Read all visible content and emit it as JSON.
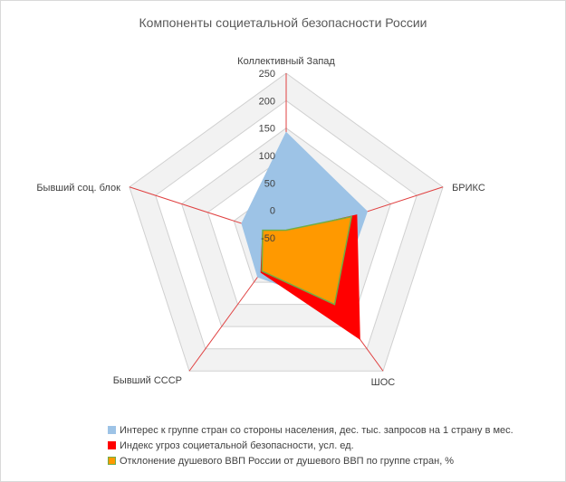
{
  "chart_data": {
    "type": "radar",
    "title": "Компоненты социетальной безопасности России",
    "categories": [
      "Коллективный  Запад",
      "БРИКС",
      "ШОС",
      "Бывший  СССР",
      "Бывший  соц. блок"
    ],
    "rlim": [
      -50,
      250
    ],
    "ticks": [
      "250",
      "200",
      "150",
      "100",
      "50",
      "0",
      "-50"
    ],
    "tick_values": [
      250,
      200,
      150,
      100,
      50,
      0,
      -50
    ],
    "grid": true,
    "legend_position": "bottom",
    "series": [
      {
        "name": "Интерес к группе стран со стороны населения, дес. тыс. запросов на 1 страну в мес.",
        "values": [
          142,
          105,
          100,
          38,
          35
        ],
        "fill": "#9dc3e6",
        "stroke": "#9dc3e6"
      },
      {
        "name": "Индекс угроз социетальной безопасности, усл. ед.",
        "values": [
          -38,
          85,
          178,
          28,
          -5
        ],
        "fill": "#ff0000",
        "stroke": "#ff0000"
      },
      {
        "name": "Отклонение душевого ВВП России от душевого ВВП по группе стран, %",
        "values": [
          -36,
          75,
          100,
          25,
          -5
        ],
        "fill": "#ff9900",
        "stroke": "#70ad47"
      }
    ]
  },
  "colors": {
    "axis": "#e04040",
    "grid": "#d0d0d0",
    "band_dark": "#f2f2f2",
    "band_light": "#ffffff"
  }
}
